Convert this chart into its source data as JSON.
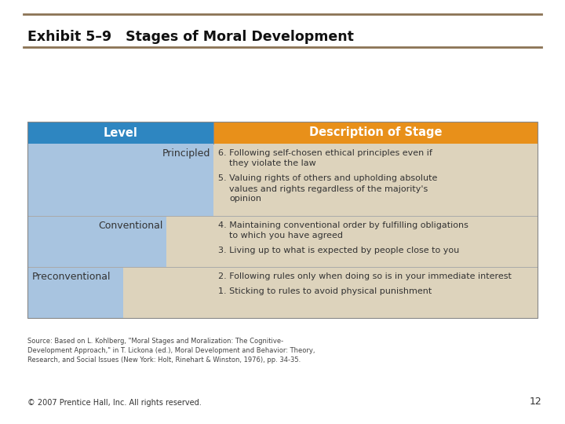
{
  "title": "Exhibit 5–9   Stages of Moral Development",
  "bg_color": "#ffffff",
  "top_line_color": "#8B7355",
  "header_level_color": "#2E86C1",
  "header_desc_color": "#E8901A",
  "header_text_color": "#ffffff",
  "level_col_bg": "#A8C4E0",
  "desc_col_bg": "#DDD3BC",
  "source_text": "Source: Based on L. Kohlberg, \"Moral Stages and Moralization: The Cognitive-\nDevelopment Approach,\" in T. Lickona (ed.), Moral Development and Behavior: Theory,\nResearch, and Social Issues (New York: Holt, Rinehart & Winston, 1976), pp. 34-35.",
  "copyright_text": "© 2007 Prentice Hall, Inc. All rights reserved.",
  "page_number": "12"
}
